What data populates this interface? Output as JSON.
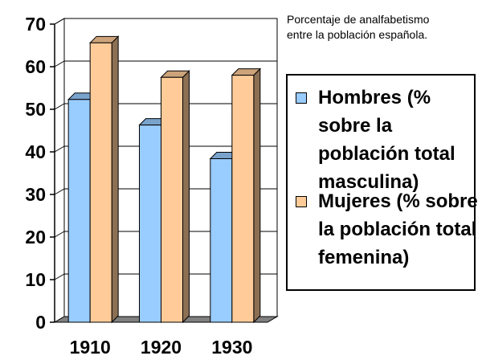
{
  "chart_data": {
    "type": "bar",
    "title": "Porcentaje de analfabetismo\nentre la población española.",
    "categories": [
      "1910",
      "1920",
      "1930"
    ],
    "series": [
      {
        "name": "Hombres (% sobre la población total masculina)",
        "values": [
          52.3,
          46.3,
          38.4
        ],
        "color": "#99ccff"
      },
      {
        "name": "Mujeres (% sobre la población total femenina)",
        "values": [
          65.6,
          57.5,
          58.0
        ],
        "color": "#ffcc99"
      }
    ],
    "ylim": [
      0,
      70
    ],
    "yticks": [
      0,
      10,
      20,
      30,
      40,
      50,
      60,
      70
    ],
    "xlabel": "",
    "ylabel": "",
    "grid": true,
    "style": "3d-clustered-column",
    "legend_position": "right"
  }
}
